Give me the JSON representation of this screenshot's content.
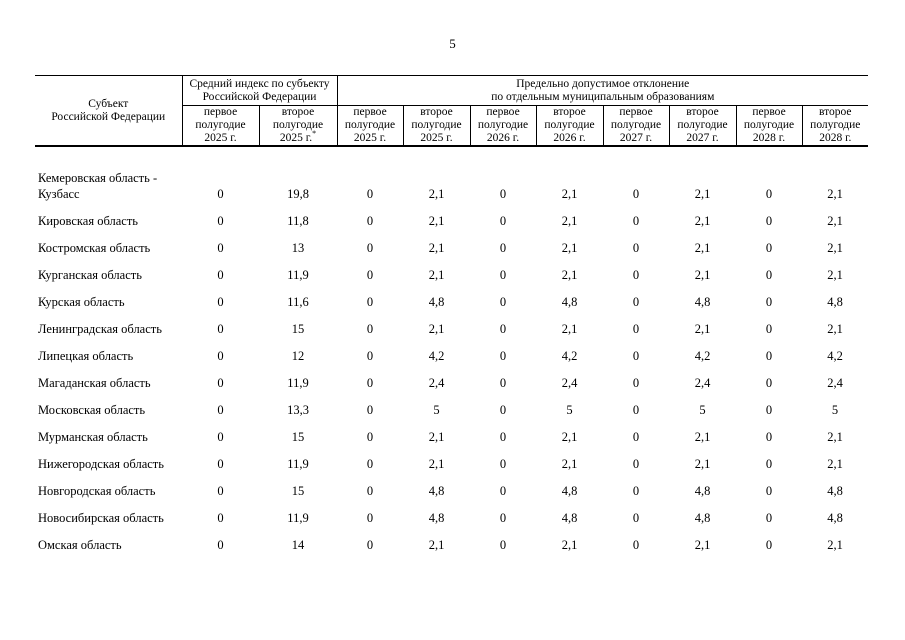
{
  "page_number": "5",
  "colors": {
    "text": "#000000",
    "background": "#ffffff",
    "border": "#000000"
  },
  "table": {
    "header": {
      "subject": "Субъект\nРоссийской Федерации",
      "avg_index_group": "Средний индекс по субъекту\nРоссийской Федерации",
      "deviation_group": "Предельно допустимое отклонение\nпо отдельным муниципальным образованиям",
      "footnote_marker": "*",
      "sub_headers": [
        "первое\nполугодие\n2025 г.",
        "второе\nполугодие\n2025 г.",
        "первое\nполугодие\n2025 г.",
        "второе\nполугодие\n2025 г.",
        "первое\nполугодие\n2026 г.",
        "второе\nполугодие\n2026 г.",
        "первое\nполугодие\n2027 г.",
        "второе\nполугодие\n2027 г.",
        "первое\nполугодие\n2028 г.",
        "второе\nполугодие\n2028 г."
      ]
    },
    "rows": [
      {
        "region": "Кемеровская область -\nКузбасс",
        "values": [
          "0",
          "19,8",
          "0",
          "2,1",
          "0",
          "2,1",
          "0",
          "2,1",
          "0",
          "2,1"
        ]
      },
      {
        "region": "Кировская область",
        "values": [
          "0",
          "11,8",
          "0",
          "2,1",
          "0",
          "2,1",
          "0",
          "2,1",
          "0",
          "2,1"
        ]
      },
      {
        "region": "Костромская область",
        "values": [
          "0",
          "13",
          "0",
          "2,1",
          "0",
          "2,1",
          "0",
          "2,1",
          "0",
          "2,1"
        ]
      },
      {
        "region": "Курганская область",
        "values": [
          "0",
          "11,9",
          "0",
          "2,1",
          "0",
          "2,1",
          "0",
          "2,1",
          "0",
          "2,1"
        ]
      },
      {
        "region": "Курская область",
        "values": [
          "0",
          "11,6",
          "0",
          "4,8",
          "0",
          "4,8",
          "0",
          "4,8",
          "0",
          "4,8"
        ]
      },
      {
        "region": "Ленинградская область",
        "values": [
          "0",
          "15",
          "0",
          "2,1",
          "0",
          "2,1",
          "0",
          "2,1",
          "0",
          "2,1"
        ]
      },
      {
        "region": "Липецкая область",
        "values": [
          "0",
          "12",
          "0",
          "4,2",
          "0",
          "4,2",
          "0",
          "4,2",
          "0",
          "4,2"
        ]
      },
      {
        "region": "Магаданская область",
        "values": [
          "0",
          "11,9",
          "0",
          "2,4",
          "0",
          "2,4",
          "0",
          "2,4",
          "0",
          "2,4"
        ]
      },
      {
        "region": "Московская область",
        "values": [
          "0",
          "13,3",
          "0",
          "5",
          "0",
          "5",
          "0",
          "5",
          "0",
          "5"
        ]
      },
      {
        "region": "Мурманская область",
        "values": [
          "0",
          "15",
          "0",
          "2,1",
          "0",
          "2,1",
          "0",
          "2,1",
          "0",
          "2,1"
        ]
      },
      {
        "region": "Нижегородская область",
        "values": [
          "0",
          "11,9",
          "0",
          "2,1",
          "0",
          "2,1",
          "0",
          "2,1",
          "0",
          "2,1"
        ]
      },
      {
        "region": "Новгородская область",
        "values": [
          "0",
          "15",
          "0",
          "4,8",
          "0",
          "4,8",
          "0",
          "4,8",
          "0",
          "4,8"
        ]
      },
      {
        "region": "Новосибирская область",
        "values": [
          "0",
          "11,9",
          "0",
          "4,8",
          "0",
          "4,8",
          "0",
          "4,8",
          "0",
          "4,8"
        ]
      },
      {
        "region": "Омская область",
        "values": [
          "0",
          "14",
          "0",
          "2,1",
          "0",
          "2,1",
          "0",
          "2,1",
          "0",
          "2,1"
        ]
      }
    ]
  }
}
